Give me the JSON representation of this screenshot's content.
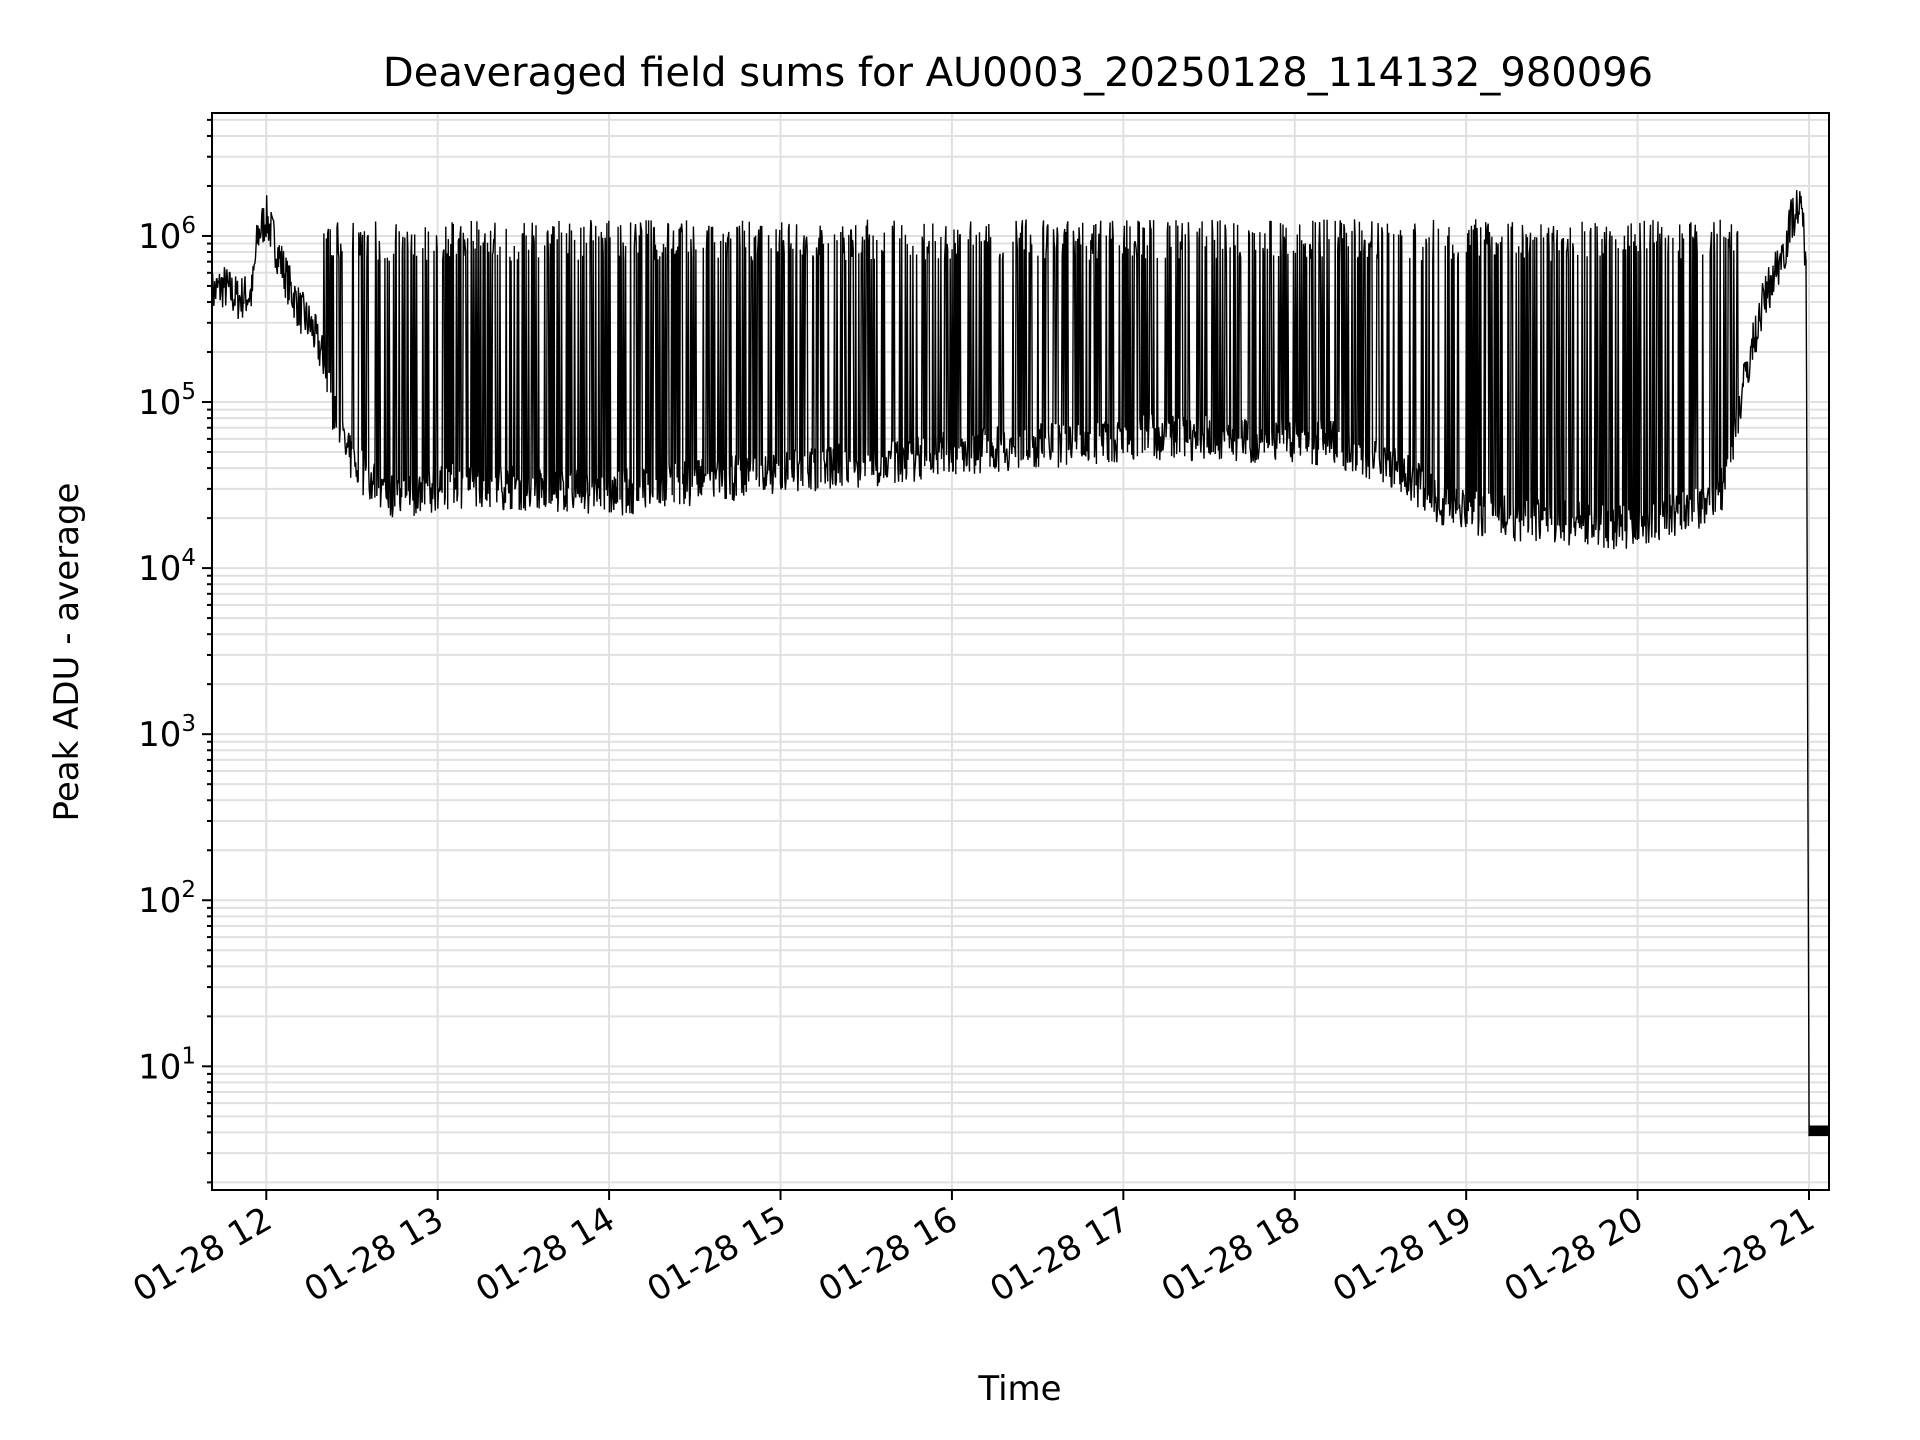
{
  "chart_data": {
    "type": "line",
    "title": "Deaveraged field sums for AU0003_20250128_114132_980096",
    "xlabel": "Time",
    "ylabel": "Peak ADU - average",
    "y_scale": "log",
    "ylim": [
      1.8,
      5500000
    ],
    "xlim": [
      "2025-01-28T11:41",
      "2025-01-28T21:07"
    ],
    "grid": true,
    "line_color": "#000000",
    "grid_color": "#e0e0e0",
    "x_ticks": [
      {
        "t": "2025-01-28T12:00",
        "label": "01-28 12"
      },
      {
        "t": "2025-01-28T13:00",
        "label": "01-28 13"
      },
      {
        "t": "2025-01-28T14:00",
        "label": "01-28 14"
      },
      {
        "t": "2025-01-28T15:00",
        "label": "01-28 15"
      },
      {
        "t": "2025-01-28T16:00",
        "label": "01-28 16"
      },
      {
        "t": "2025-01-28T17:00",
        "label": "01-28 17"
      },
      {
        "t": "2025-01-28T18:00",
        "label": "01-28 18"
      },
      {
        "t": "2025-01-28T19:00",
        "label": "01-28 19"
      },
      {
        "t": "2025-01-28T20:00",
        "label": "01-28 20"
      },
      {
        "t": "2025-01-28T21:00",
        "label": "01-28 21"
      }
    ],
    "y_ticks": [
      {
        "value": 10,
        "base": "10",
        "exp": "1"
      },
      {
        "value": 100,
        "base": "10",
        "exp": "2"
      },
      {
        "value": 1000,
        "base": "10",
        "exp": "3"
      },
      {
        "value": 10000,
        "base": "10",
        "exp": "4"
      },
      {
        "value": 100000,
        "base": "10",
        "exp": "5"
      },
      {
        "value": 1000000,
        "base": "10",
        "exp": "6"
      }
    ],
    "series": [
      {
        "x": [
          "2025-01-28T11:41",
          "2025-01-28T11:45",
          "2025-01-28T11:50",
          "2025-01-28T11:55",
          "2025-01-28T11:57",
          "2025-01-28T12:00",
          "2025-01-28T12:04",
          "2025-01-28T12:08",
          "2025-01-28T12:12",
          "2025-01-28T12:16",
          "2025-01-28T12:20",
          "2025-01-28T12:24",
          "2025-01-28T12:28",
          "2025-01-28T12:32",
          "2025-01-28T12:36",
          "2025-01-28T12:42",
          "2025-01-28T12:50",
          "2025-01-28T13:00",
          "2025-01-28T13:15",
          "2025-01-28T13:30",
          "2025-01-28T13:45",
          "2025-01-28T14:00",
          "2025-01-28T14:15",
          "2025-01-28T14:30",
          "2025-01-28T14:45",
          "2025-01-28T15:00",
          "2025-01-28T15:15",
          "2025-01-28T15:30",
          "2025-01-28T15:45",
          "2025-01-28T16:00",
          "2025-01-28T16:15",
          "2025-01-28T16:30",
          "2025-01-28T16:45",
          "2025-01-28T17:00",
          "2025-01-28T17:15",
          "2025-01-28T17:30",
          "2025-01-28T17:45",
          "2025-01-28T18:00",
          "2025-01-28T18:15",
          "2025-01-28T18:30",
          "2025-01-28T18:40",
          "2025-01-28T18:50",
          "2025-01-28T19:00",
          "2025-01-28T19:15",
          "2025-01-28T19:30",
          "2025-01-28T19:45",
          "2025-01-28T20:00",
          "2025-01-28T20:10",
          "2025-01-28T20:20",
          "2025-01-28T20:30",
          "2025-01-28T20:38",
          "2025-01-28T20:44",
          "2025-01-28T20:48",
          "2025-01-28T20:52",
          "2025-01-28T20:54",
          "2025-01-28T20:56",
          "2025-01-28T20:58",
          "2025-01-28T20:59",
          "2025-01-28T21:00",
          "2025-01-28T21:07"
        ],
        "y": [
          450000,
          500000,
          420000,
          450000,
          1000000,
          1300000,
          800000,
          500000,
          350000,
          280000,
          180000,
          80000,
          50000,
          40000,
          35000,
          28000,
          27000,
          30000,
          32000,
          30000,
          29000,
          28000,
          30000,
          33000,
          35000,
          37000,
          40000,
          42000,
          45000,
          50000,
          52000,
          55000,
          55000,
          60000,
          62000,
          60000,
          58000,
          60000,
          55000,
          45000,
          35000,
          25000,
          22000,
          20000,
          19000,
          18000,
          17000,
          20000,
          22000,
          30000,
          150000,
          400000,
          600000,
          900000,
          1300000,
          1500000,
          1200000,
          700000,
          4,
          4
        ]
      }
    ],
    "spikes": {
      "count": 450,
      "start": "2025-01-28T12:20",
      "end": "2025-01-28T20:35",
      "peak_level": 1000000,
      "low_level": 15000
    }
  }
}
